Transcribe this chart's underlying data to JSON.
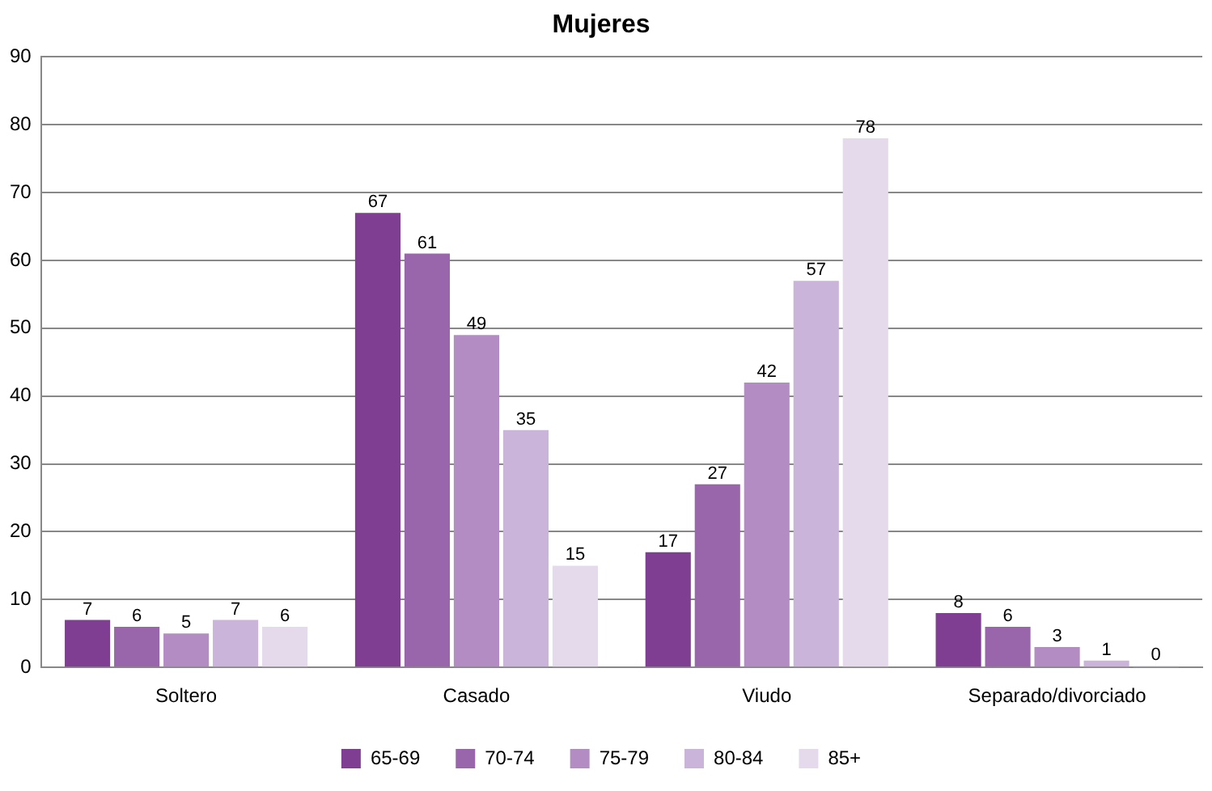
{
  "chart_data": {
    "type": "bar",
    "title": "Mujeres",
    "categories": [
      "Soltero",
      "Casado",
      "Viudo",
      "Separado/divorciado"
    ],
    "series": [
      {
        "name": "65-69",
        "color": "#803e93",
        "values": [
          7,
          67,
          17,
          8
        ]
      },
      {
        "name": "70-74",
        "color": "#9a66ab",
        "values": [
          6,
          61,
          27,
          6
        ]
      },
      {
        "name": "75-79",
        "color": "#b38cc4",
        "values": [
          5,
          49,
          42,
          3
        ]
      },
      {
        "name": "80-84",
        "color": "#cab4da",
        "values": [
          7,
          35,
          57,
          1
        ]
      },
      {
        "name": "85+",
        "color": "#e4daec",
        "values": [
          6,
          15,
          78,
          0
        ]
      }
    ],
    "ylim": [
      0,
      90
    ],
    "yticks": [
      0,
      10,
      20,
      30,
      40,
      50,
      60,
      70,
      80,
      90
    ],
    "grid": "y",
    "legend": "bottom",
    "data_labels": true
  }
}
